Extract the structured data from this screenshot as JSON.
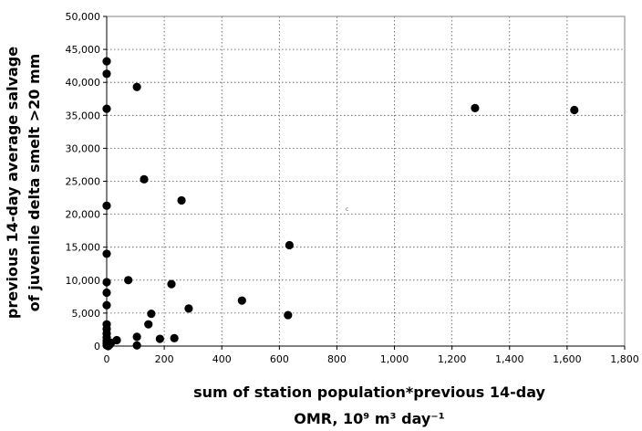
{
  "chart_data": {
    "type": "scatter",
    "title": "",
    "xlabel": "sum of station population*previous 14-day",
    "xlabel_line2": "OMR, 10⁹ m³ day⁻¹",
    "ylabel_line1": "previous 14-day average salvage",
    "ylabel_line2": "of juvenile delta smelt >20 mm",
    "xlim": [
      0,
      1800
    ],
    "ylim": [
      0,
      50000
    ],
    "x_ticks": [
      0,
      200,
      400,
      600,
      800,
      1000,
      1200,
      1400,
      1600,
      1800
    ],
    "x_tick_labels": [
      "0",
      "200",
      "400",
      "600",
      "800",
      "1,000",
      "1,200",
      "1,400",
      "1,600",
      "1,800"
    ],
    "y_ticks": [
      0,
      5000,
      10000,
      15000,
      20000,
      25000,
      30000,
      35000,
      40000,
      45000,
      50000
    ],
    "y_tick_labels": [
      "0",
      "5,000",
      "10,000",
      "15,000",
      "20,000",
      "25,000",
      "30,000",
      "35,000",
      "40,000",
      "45,000",
      "50,000"
    ],
    "grid": true,
    "legend": "none",
    "point_color": "#000000",
    "annotation": "c",
    "points": [
      {
        "x": 0,
        "y": 43200
      },
      {
        "x": 0,
        "y": 41300
      },
      {
        "x": 0,
        "y": 36000
      },
      {
        "x": 0,
        "y": 21300
      },
      {
        "x": 0,
        "y": 14000
      },
      {
        "x": 0,
        "y": 9700
      },
      {
        "x": 0,
        "y": 8100
      },
      {
        "x": 0,
        "y": 6200
      },
      {
        "x": 0,
        "y": 3300
      },
      {
        "x": 0,
        "y": 2600
      },
      {
        "x": 0,
        "y": 1900
      },
      {
        "x": 0,
        "y": 1300
      },
      {
        "x": 0,
        "y": 800
      },
      {
        "x": 0,
        "y": 400
      },
      {
        "x": 0,
        "y": 100
      },
      {
        "x": 5,
        "y": 0
      },
      {
        "x": 10,
        "y": 200
      },
      {
        "x": 15,
        "y": 500
      },
      {
        "x": 35,
        "y": 900
      },
      {
        "x": 75,
        "y": 10000
      },
      {
        "x": 105,
        "y": 39300
      },
      {
        "x": 105,
        "y": 1400
      },
      {
        "x": 105,
        "y": 100
      },
      {
        "x": 130,
        "y": 25300
      },
      {
        "x": 145,
        "y": 3300
      },
      {
        "x": 155,
        "y": 4900
      },
      {
        "x": 185,
        "y": 1100
      },
      {
        "x": 225,
        "y": 9400
      },
      {
        "x": 235,
        "y": 1200
      },
      {
        "x": 260,
        "y": 22100
      },
      {
        "x": 285,
        "y": 5700
      },
      {
        "x": 470,
        "y": 6900
      },
      {
        "x": 630,
        "y": 4700
      },
      {
        "x": 635,
        "y": 15300
      },
      {
        "x": 1280,
        "y": 36100
      },
      {
        "x": 1625,
        "y": 35800
      }
    ]
  }
}
